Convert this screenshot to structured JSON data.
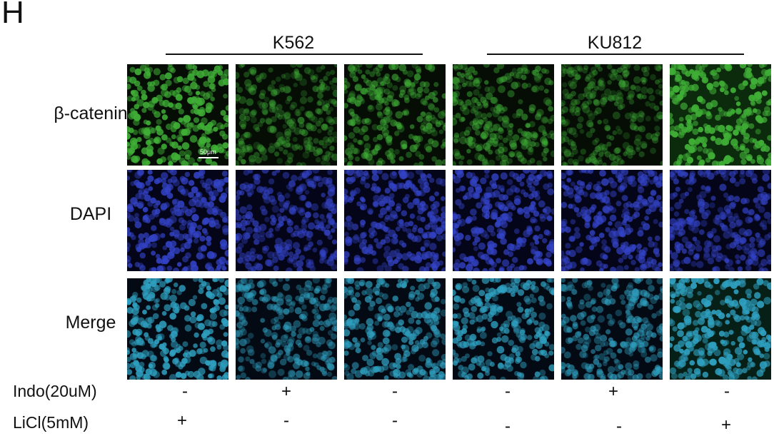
{
  "figure": {
    "panel_letter": "H",
    "groups": [
      {
        "label": "K562"
      },
      {
        "label": "KU812"
      }
    ],
    "rows": [
      {
        "label": "β-catenin",
        "stain": "green"
      },
      {
        "label": "DAPI",
        "stain": "blue"
      },
      {
        "label": "Merge",
        "stain": "merge"
      }
    ],
    "conditions": [
      {
        "label": "Indo(20uM)",
        "values": [
          "-",
          "+",
          "-",
          "-",
          "+",
          "-"
        ]
      },
      {
        "label": "LiCl(5mM)",
        "values": [
          "+",
          "-",
          "-",
          "-",
          "-",
          "+"
        ]
      }
    ],
    "scale_bar_label": "50μm",
    "colors": {
      "green_stain": "#3fae36",
      "blue_stain": "#3343c6",
      "merge_stain": "#2fa0c0",
      "background": "#000000"
    }
  }
}
